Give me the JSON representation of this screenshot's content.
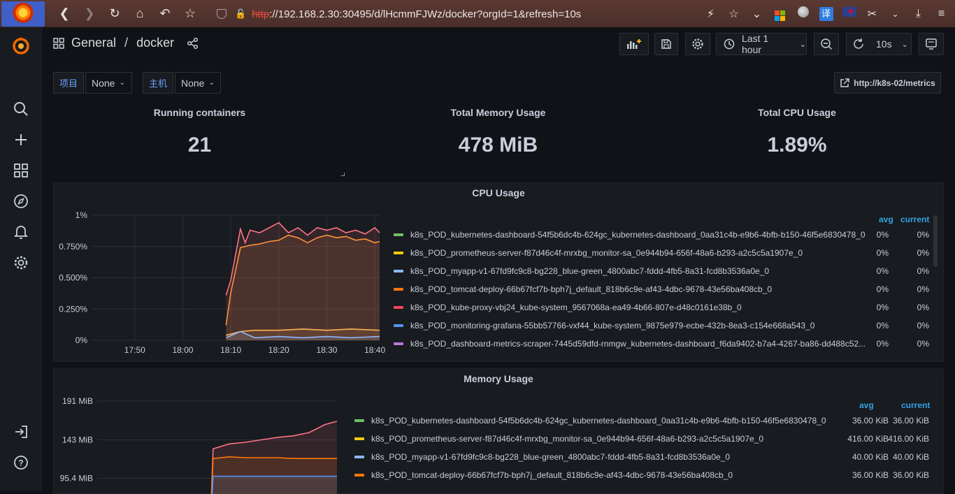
{
  "browser": {
    "url_protocol": "http",
    "url_rest": "://192.168.2.30:30495/d/lHcmmFJWz/docker?orgId=1&refresh=10s"
  },
  "breadcrumb": {
    "folder": "General",
    "separator": "/",
    "dashboard": "docker"
  },
  "toolbar": {
    "time_range": "Last 1 hour",
    "refresh_interval": "10s"
  },
  "variables": [
    {
      "label": "项目",
      "value": "None"
    },
    {
      "label": "主机",
      "value": "None"
    }
  ],
  "link": {
    "label": "http://k8s-02/metrics"
  },
  "stats": [
    {
      "title": "Running containers",
      "value": "21"
    },
    {
      "title": "Total Memory Usage",
      "value": "478 MiB"
    },
    {
      "title": "Total CPU Usage",
      "value": "1.89%"
    }
  ],
  "cpu_panel": {
    "title": "CPU Usage",
    "legend_headers": {
      "avg": "avg",
      "current": "current"
    },
    "legend": [
      {
        "name": "k8s_POD_kubernetes-dashboard-54f5b6dc4b-624gc_kubernetes-dashboard_0aa31c4b-e9b6-4bfb-b150-46f5e6830478_0",
        "color": "#73bf69",
        "avg": "0%",
        "current": "0%"
      },
      {
        "name": "k8s_POD_prometheus-server-f87d46c4f-mrxbg_monitor-sa_0e944b94-656f-48a6-b293-a2c5c5a1907e_0",
        "color": "#f2cc0c",
        "avg": "0%",
        "current": "0%"
      },
      {
        "name": "k8s_POD_myapp-v1-67fd9fc9c8-bg228_blue-green_4800abc7-fddd-4fb5-8a31-fcd8b3536a0e_0",
        "color": "#8ab8ff",
        "avg": "0%",
        "current": "0%"
      },
      {
        "name": "k8s_POD_tomcat-deploy-66b67fcf7b-bph7j_default_818b6c9e-af43-4dbc-9678-43e56ba408cb_0",
        "color": "#ff780a",
        "avg": "0%",
        "current": "0%"
      },
      {
        "name": "k8s_POD_kube-proxy-vbj24_kube-system_9567068a-ea49-4b66-807e-d48c0161e38b_0",
        "color": "#f2495c",
        "avg": "0%",
        "current": "0%"
      },
      {
        "name": "k8s_POD_monitoring-grafana-55bb57766-vxf44_kube-system_9875e979-ecbe-432b-8ea3-c154e668a543_0",
        "color": "#5794f2",
        "avg": "0%",
        "current": "0%"
      },
      {
        "name": "k8s_POD_dashboard-metrics-scraper-7445d59dfd-rnmgw_kubernetes-dashboard_f6da9402-b7a4-4267-ba86-dd488c52...",
        "color": "#b877d9",
        "avg": "0%",
        "current": "0%"
      }
    ]
  },
  "memory_panel": {
    "title": "Memory Usage",
    "legend_headers": {
      "avg": "avg",
      "current": "current"
    },
    "legend": [
      {
        "name": "k8s_POD_kubernetes-dashboard-54f5b6dc4b-624gc_kubernetes-dashboard_0aa31c4b-e9b6-4bfb-b150-46f5e6830478_0",
        "color": "#73bf69",
        "avg": "36.00 KiB",
        "current": "36.00 KiB"
      },
      {
        "name": "k8s_POD_prometheus-server-f87d46c4f-mrxbg_monitor-sa_0e944b94-656f-48a6-b293-a2c5c5a1907e_0",
        "color": "#f2cc0c",
        "avg": "416.00 KiB",
        "current": "416.00 KiB"
      },
      {
        "name": "k8s_POD_myapp-v1-67fd9fc9c8-bg228_blue-green_4800abc7-fddd-4fb5-8a31-fcd8b3536a0e_0",
        "color": "#8ab8ff",
        "avg": "40.00 KiB",
        "current": "40.00 KiB"
      },
      {
        "name": "k8s_POD_tomcat-deploy-66b67fcf7b-bph7j_default_818b6c9e-af43-4dbc-9678-43e56ba408cb_0",
        "color": "#ff780a",
        "avg": "36.00 KiB",
        "current": "36.00 KiB"
      }
    ]
  },
  "chart_data": [
    {
      "type": "area",
      "title": "CPU Usage",
      "xlabel": "",
      "ylabel": "",
      "x_ticks": [
        "17:50",
        "18:00",
        "18:10",
        "18:20",
        "18:30",
        "18:40"
      ],
      "y_ticks": [
        "0%",
        "0.250%",
        "0.500%",
        "0.750%",
        "1%"
      ],
      "xlim": [
        "17:41",
        "18:41"
      ],
      "ylim": [
        0,
        1
      ],
      "series": [
        {
          "color": "#ff9830",
          "x": [
            "18:09",
            "18:10",
            "18:12",
            "18:14",
            "18:16",
            "18:18",
            "18:20",
            "18:22",
            "18:24",
            "18:26",
            "18:28",
            "18:30",
            "18:32",
            "18:34",
            "18:36",
            "18:38",
            "18:40",
            "18:41"
          ],
          "values": [
            0.12,
            0.38,
            0.74,
            0.76,
            0.77,
            0.79,
            0.8,
            0.84,
            0.82,
            0.78,
            0.82,
            0.84,
            0.82,
            0.83,
            0.8,
            0.81,
            0.78,
            0.79
          ]
        },
        {
          "color": "#ff7383",
          "x": [
            "18:09",
            "18:10",
            "18:12",
            "18:13",
            "18:14",
            "18:16",
            "18:18",
            "18:20",
            "18:22",
            "18:24",
            "18:26",
            "18:28",
            "18:30",
            "18:32",
            "18:34",
            "18:36",
            "18:38",
            "18:40",
            "18:41"
          ],
          "values": [
            0.36,
            0.48,
            0.89,
            0.78,
            0.88,
            0.86,
            0.9,
            0.94,
            0.86,
            0.9,
            0.84,
            0.9,
            0.88,
            0.9,
            0.86,
            0.88,
            0.85,
            0.9,
            0.86
          ]
        },
        {
          "color": "#ffb357",
          "x": [
            "18:09",
            "18:12",
            "18:15",
            "18:20",
            "18:25",
            "18:30",
            "18:35",
            "18:41"
          ],
          "values": [
            0.04,
            0.07,
            0.08,
            0.08,
            0.09,
            0.08,
            0.09,
            0.08
          ]
        },
        {
          "color": "#8ab8ff",
          "x": [
            "18:09",
            "18:12",
            "18:15",
            "18:20",
            "18:25",
            "18:30",
            "18:35",
            "18:41"
          ],
          "values": [
            0.02,
            0.07,
            0.02,
            0.03,
            0.02,
            0.03,
            0.02,
            0.03
          ]
        }
      ]
    },
    {
      "type": "area",
      "title": "Memory Usage",
      "xlabel": "",
      "ylabel": "",
      "y_ticks": [
        "95.4 MiB",
        "143 MiB",
        "191 MiB"
      ],
      "xlim": [
        "17:41",
        "18:41"
      ],
      "ylim": [
        0,
        191
      ],
      "series": [
        {
          "color": "#ff7383",
          "x": [
            "18:09",
            "18:10",
            "18:14",
            "18:18",
            "18:22",
            "18:26",
            "18:30",
            "18:34",
            "18:38",
            "18:41"
          ],
          "values": [
            0,
            132,
            138,
            140,
            143,
            146,
            148,
            152,
            162,
            166
          ]
        },
        {
          "color": "#ff780a",
          "x": [
            "18:09",
            "18:10",
            "18:14",
            "18:18",
            "18:22",
            "18:26",
            "18:30",
            "18:34",
            "18:38",
            "18:41"
          ],
          "values": [
            0,
            120,
            122,
            121,
            121,
            121,
            120,
            120,
            120,
            120
          ]
        },
        {
          "color": "#5794f2",
          "x": [
            "18:09",
            "18:10",
            "18:14",
            "18:20",
            "18:30",
            "18:41"
          ],
          "values": [
            0,
            98,
            98,
            98,
            98,
            98
          ]
        }
      ]
    }
  ]
}
